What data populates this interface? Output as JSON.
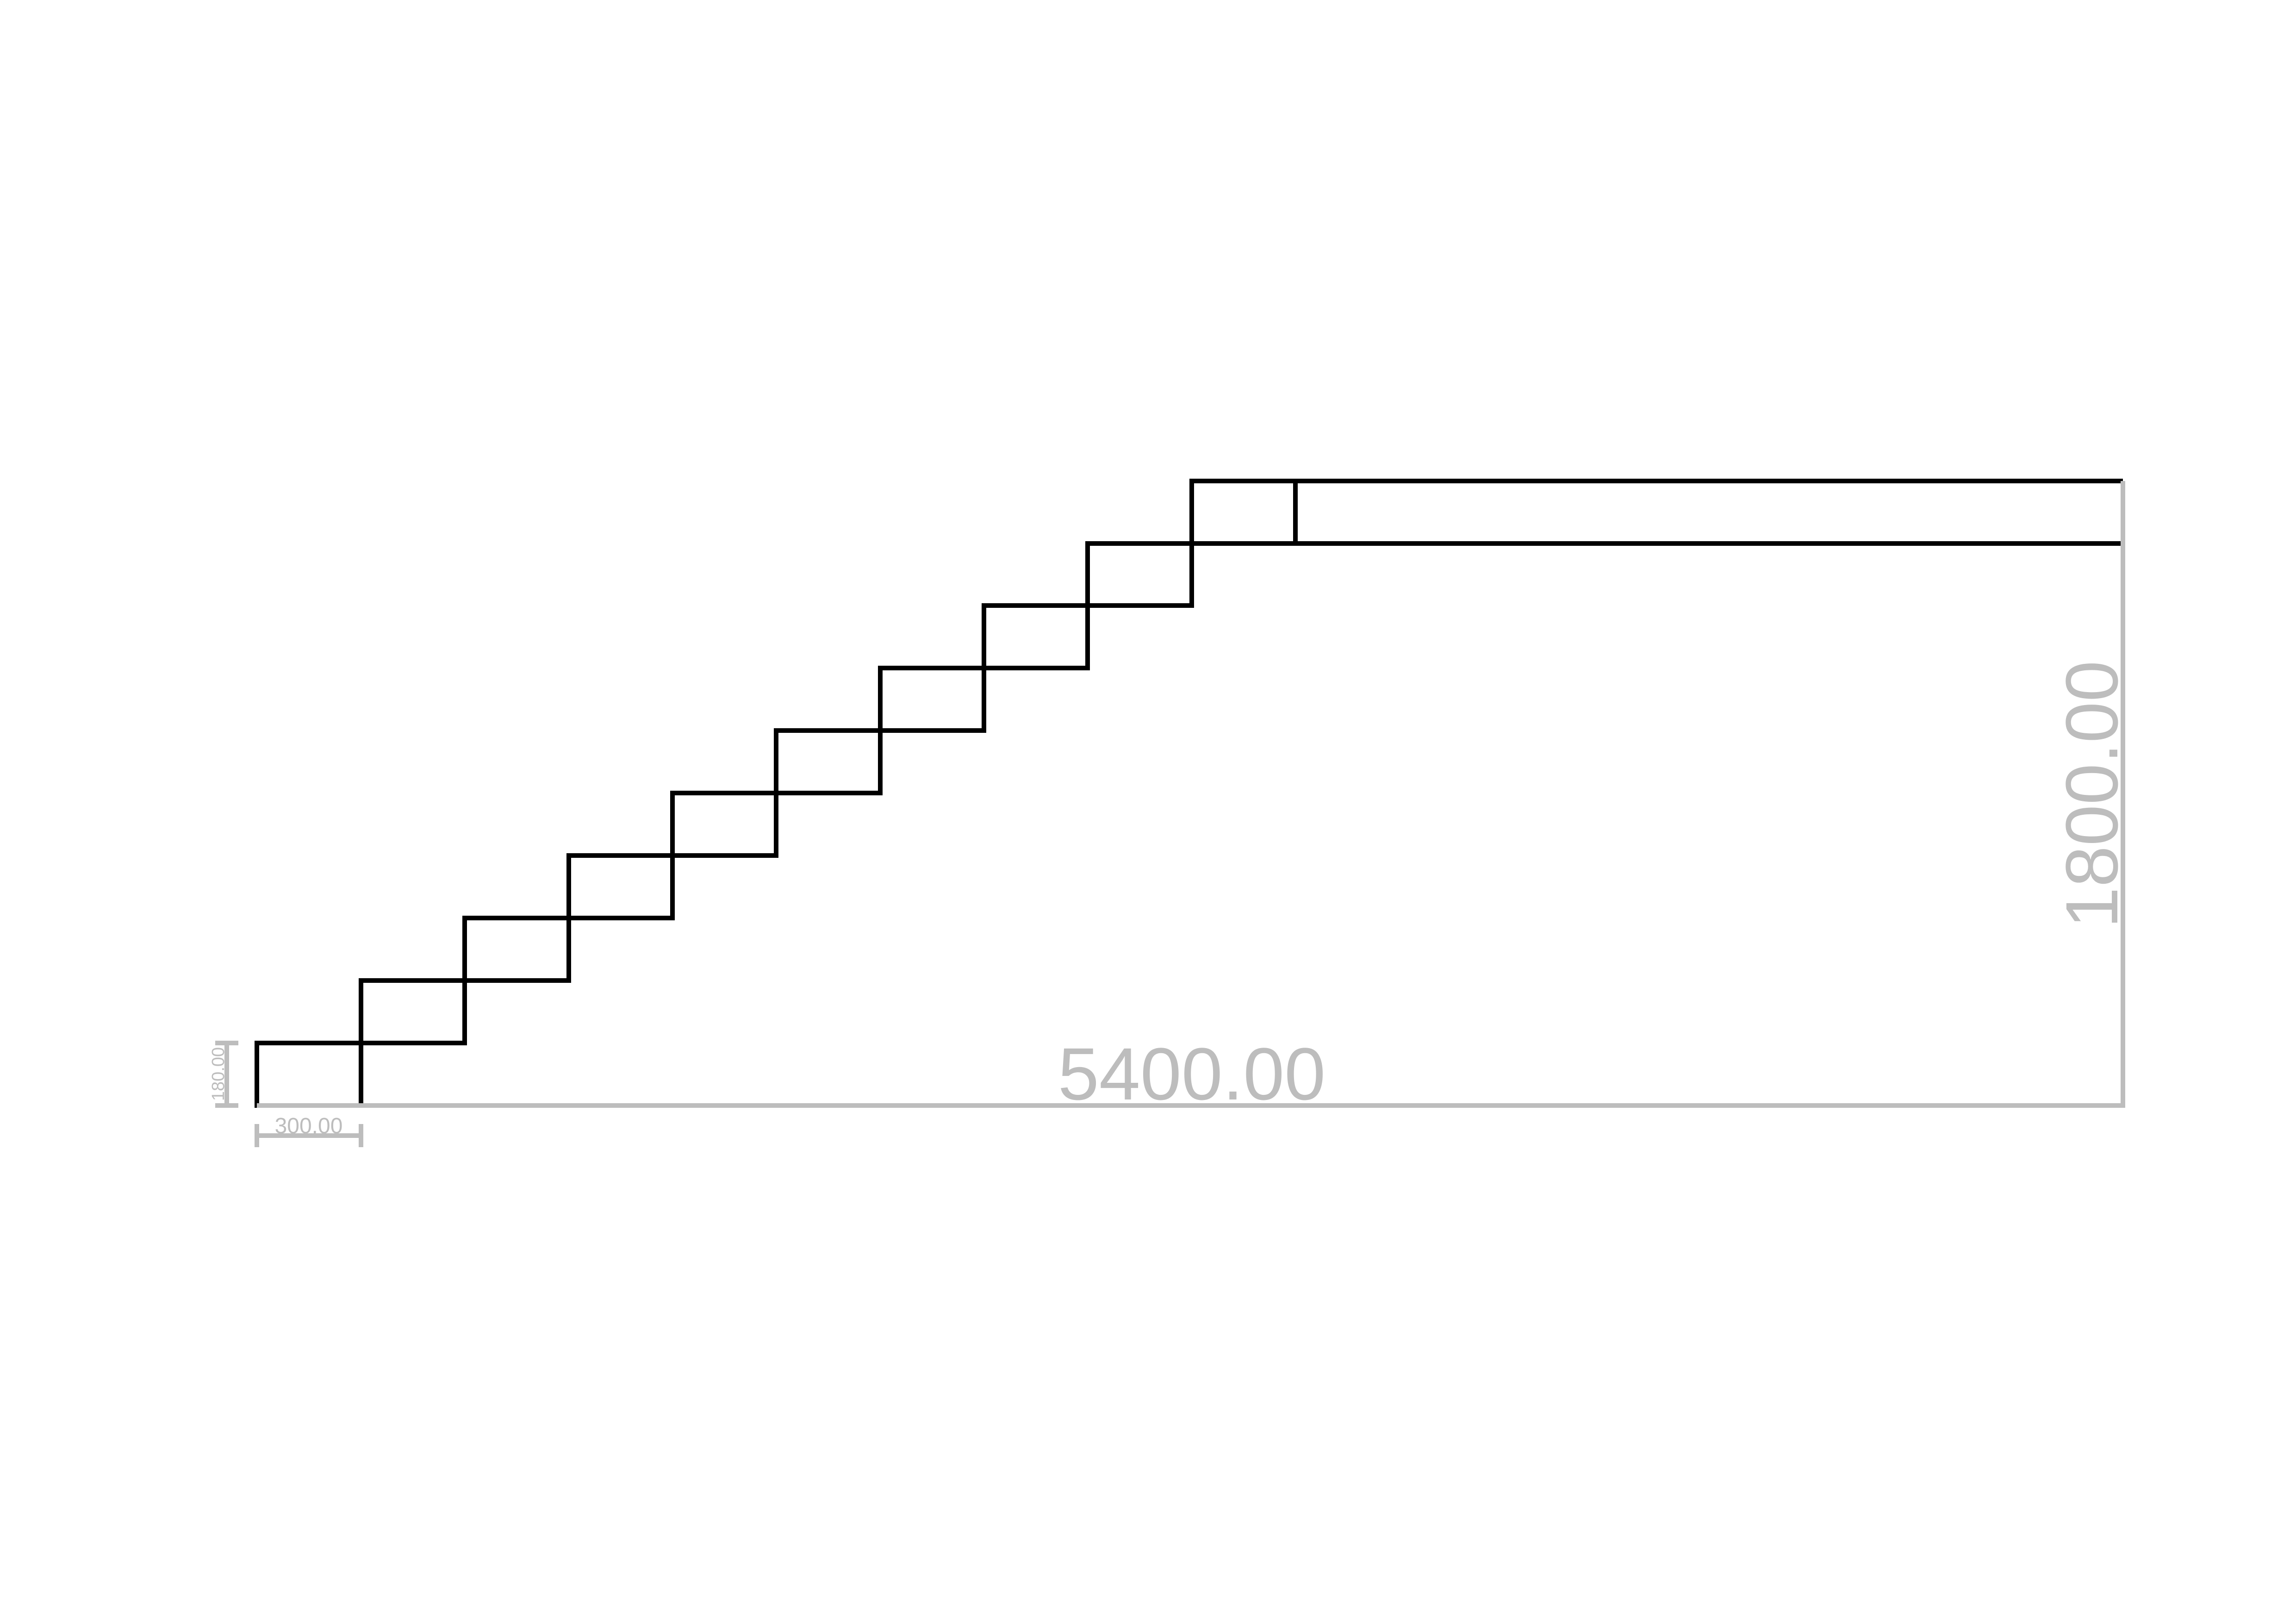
{
  "drawing": {
    "type": "stair-elevation",
    "step_count": 10,
    "landing_steps": 1
  },
  "dimensions": {
    "total_run": "5400.00",
    "total_rise": "1800.00",
    "tread_depth": "300.00",
    "riser_height": "180.00"
  },
  "colors": {
    "geometry": "#000000",
    "dimension": "#bdbdbd",
    "background": "#ffffff"
  }
}
